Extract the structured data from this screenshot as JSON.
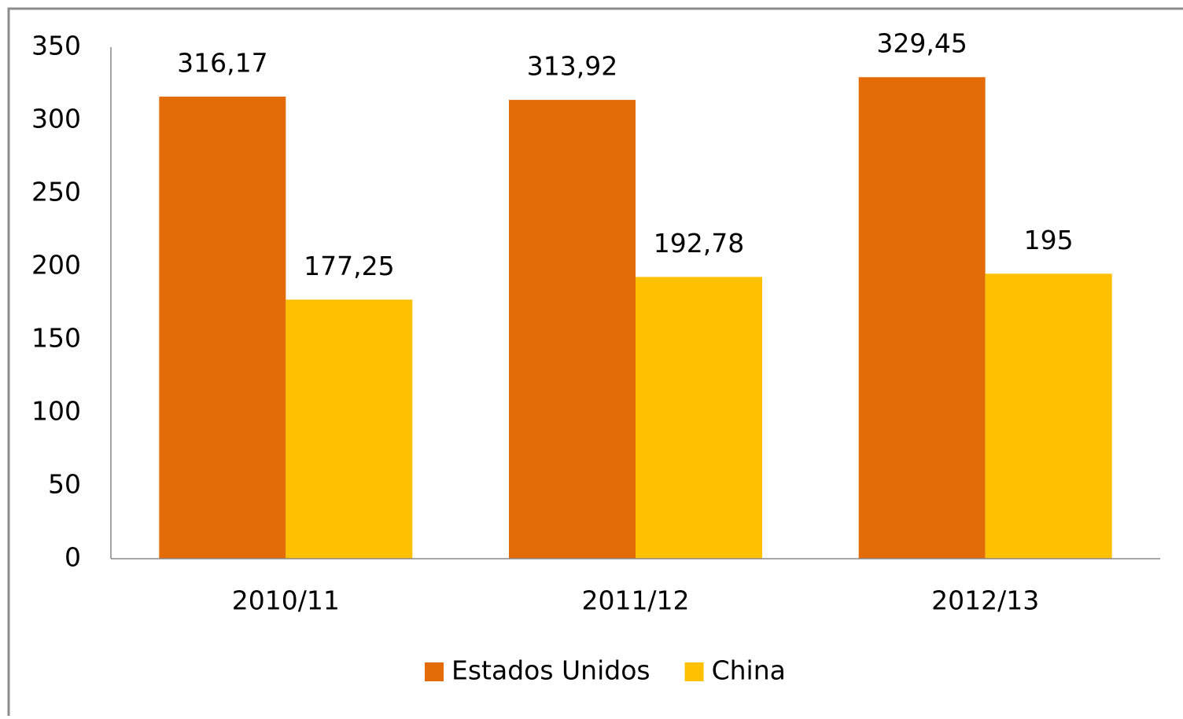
{
  "chart_data": {
    "type": "bar",
    "categories": [
      "2010/11",
      "2011/12",
      "2012/13"
    ],
    "series": [
      {
        "name": "Estados Unidos",
        "color": "#E36C09",
        "values": [
          316.17,
          313.92,
          329.45
        ],
        "value_labels": [
          "316,17",
          "313,92",
          "329,45"
        ]
      },
      {
        "name": "China",
        "color": "#FFC000",
        "values": [
          177.25,
          192.78,
          195
        ],
        "value_labels": [
          "177,25",
          "192,78",
          "195"
        ]
      }
    ],
    "ylim": [
      0,
      350
    ],
    "yticks": [
      0,
      50,
      100,
      150,
      200,
      250,
      300,
      350
    ],
    "grid": false,
    "legend": "bottom"
  }
}
